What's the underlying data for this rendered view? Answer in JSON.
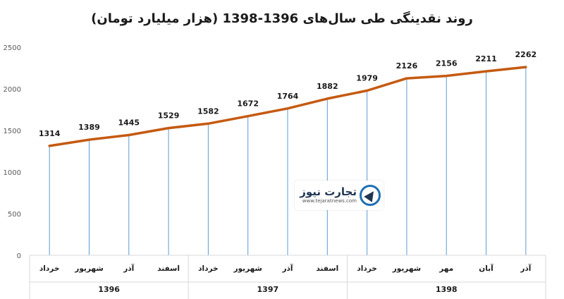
{
  "title": "روند نقدینگی طی سال‌های 1396-1398 (هزار میلیارد تومان)",
  "watermark": {
    "name": "تجارت نیوز",
    "url": "www.tejaratnews.com"
  },
  "chart_data": {
    "type": "line",
    "title": "روند نقدینگی طی سال‌های 1396-1398 (هزار میلیارد تومان)",
    "ylim": [
      0,
      2500
    ],
    "yticks": [
      "0",
      "500",
      "1000",
      "1500",
      "2000",
      "2500"
    ],
    "grid": "vertical drop lines",
    "line_color": "#C55A11",
    "drop_line_color": "#5B9BD5",
    "categories": [
      "خرداد",
      "شهریور",
      "آذر",
      "اسفند",
      "خرداد",
      "شهریور",
      "آذر",
      "اسفند",
      "خرداد",
      "شهریور",
      "مهر",
      "آبان",
      "آذر"
    ],
    "groups": [
      {
        "label": "1396",
        "count": 4
      },
      {
        "label": "1397",
        "count": 4
      },
      {
        "label": "1398",
        "count": 5
      }
    ],
    "values": [
      1314,
      1389,
      1445,
      1529,
      1582,
      1672,
      1764,
      1882,
      1979,
      2126,
      2156,
      2211,
      2262
    ],
    "data_labels": [
      "1314",
      "1389",
      "1445",
      "1529",
      "1582",
      "1672",
      "1764",
      "1882",
      "1979",
      "2126",
      "2156",
      "2211",
      "2262"
    ]
  }
}
